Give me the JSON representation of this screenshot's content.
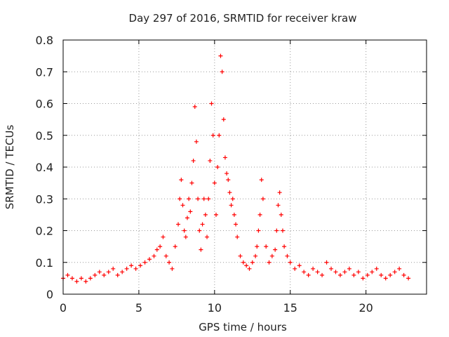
{
  "chart_data": {
    "type": "scatter",
    "title": "Day 297 of 2016, SRMTID for receiver kraw",
    "xlabel": "GPS time / hours",
    "ylabel": "SRMTID / TECUs",
    "xlim": [
      0,
      24
    ],
    "ylim": [
      0,
      0.8
    ],
    "xticks": [
      0,
      5,
      10,
      15,
      20
    ],
    "xtick_labels": [
      "0",
      "5",
      "10",
      "15",
      "20"
    ],
    "yticks": [
      0,
      0.1,
      0.2,
      0.3,
      0.4,
      0.5,
      0.6,
      0.7,
      0.8
    ],
    "ytick_labels": [
      "0",
      "0.1",
      "0.2",
      "0.3",
      "0.4",
      "0.5",
      "0.6",
      "0.7",
      "0.8"
    ],
    "grid": true,
    "marker": "+",
    "series": [
      {
        "name": "SRMTID",
        "color": "#ff0000",
        "x": [
          0.0,
          0.3,
          0.6,
          0.9,
          1.2,
          1.5,
          1.8,
          2.1,
          2.4,
          2.7,
          3.0,
          3.3,
          3.6,
          3.9,
          4.2,
          4.5,
          4.8,
          5.1,
          5.4,
          5.7,
          6.0,
          6.2,
          6.4,
          6.6,
          6.8,
          7.0,
          7.2,
          7.4,
          7.6,
          7.7,
          7.8,
          7.9,
          8.0,
          8.1,
          8.2,
          8.3,
          8.4,
          8.5,
          8.6,
          8.7,
          8.8,
          8.9,
          9.0,
          9.1,
          9.2,
          9.3,
          9.4,
          9.5,
          9.6,
          9.7,
          9.8,
          9.9,
          10.0,
          10.1,
          10.2,
          10.3,
          10.4,
          10.5,
          10.6,
          10.7,
          10.8,
          10.9,
          11.0,
          11.1,
          11.2,
          11.3,
          11.4,
          11.5,
          11.7,
          11.9,
          12.1,
          12.3,
          12.5,
          12.7,
          12.8,
          12.9,
          13.0,
          13.1,
          13.2,
          13.4,
          13.6,
          13.8,
          14.0,
          14.1,
          14.2,
          14.3,
          14.4,
          14.5,
          14.6,
          14.8,
          15.0,
          15.3,
          15.6,
          15.9,
          16.2,
          16.5,
          16.8,
          17.1,
          17.4,
          17.7,
          18.0,
          18.3,
          18.6,
          18.9,
          19.2,
          19.5,
          19.8,
          20.1,
          20.4,
          20.7,
          21.0,
          21.3,
          21.6,
          21.9,
          22.2,
          22.5,
          22.8
        ],
        "y": [
          0.05,
          0.06,
          0.05,
          0.04,
          0.05,
          0.04,
          0.05,
          0.06,
          0.07,
          0.06,
          0.07,
          0.08,
          0.06,
          0.07,
          0.08,
          0.09,
          0.08,
          0.09,
          0.1,
          0.11,
          0.12,
          0.14,
          0.15,
          0.18,
          0.12,
          0.1,
          0.08,
          0.15,
          0.22,
          0.3,
          0.36,
          0.28,
          0.2,
          0.18,
          0.24,
          0.3,
          0.26,
          0.35,
          0.42,
          0.59,
          0.48,
          0.3,
          0.2,
          0.14,
          0.22,
          0.3,
          0.25,
          0.18,
          0.3,
          0.42,
          0.6,
          0.5,
          0.35,
          0.25,
          0.4,
          0.5,
          0.75,
          0.7,
          0.55,
          0.43,
          0.38,
          0.36,
          0.32,
          0.28,
          0.3,
          0.25,
          0.22,
          0.18,
          0.12,
          0.1,
          0.09,
          0.08,
          0.1,
          0.12,
          0.15,
          0.2,
          0.25,
          0.36,
          0.3,
          0.15,
          0.1,
          0.12,
          0.14,
          0.2,
          0.28,
          0.32,
          0.25,
          0.2,
          0.15,
          0.12,
          0.1,
          0.08,
          0.09,
          0.07,
          0.06,
          0.08,
          0.07,
          0.06,
          0.1,
          0.08,
          0.07,
          0.06,
          0.07,
          0.08,
          0.06,
          0.07,
          0.05,
          0.06,
          0.07,
          0.08,
          0.06,
          0.05,
          0.06,
          0.07,
          0.08,
          0.06,
          0.05
        ]
      }
    ]
  }
}
